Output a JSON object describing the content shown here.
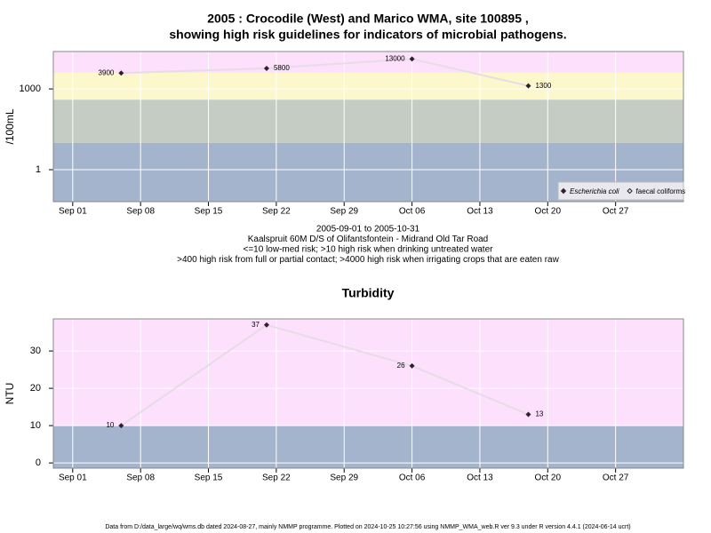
{
  "title": [
    "2005 : Crocodile (West) and Marico WMA, site 100895 ,",
    "showing high risk guidelines for indicators of microbial pathogens."
  ],
  "footer": "Data from D:/data_large/wq/wms.db dated 2024-08-27, mainly NMMP programme. Plotted on 2024-10-25 10:27:56 using NMMP_WMA_web.R ver 9.3 under R version 4.4.1 (2024-06-14 ucrt)",
  "chart_data": [
    {
      "type": "line",
      "ylabel": "/100mL",
      "log_y": true,
      "grid": true,
      "legend": "bottom-right",
      "x": [
        "2005-09-06",
        "2005-09-21",
        "2005-10-06",
        "2005-10-18"
      ],
      "series": [
        {
          "name": "Escherichia coli",
          "color": "#302030",
          "values": [
            3900,
            5800,
            13000,
            1300
          ]
        },
        {
          "name": "faecal coliforms",
          "color": "#302030",
          "values": [
            null,
            null,
            null,
            null
          ]
        }
      ],
      "xlim": [
        "2005-08-30",
        "2005-11-03"
      ],
      "xticks": [
        {
          "value": "2005-09-01",
          "label": "Sep 01"
        },
        {
          "value": "2005-09-08",
          "label": "Sep 08"
        },
        {
          "value": "2005-09-15",
          "label": "Sep 15"
        },
        {
          "value": "2005-09-22",
          "label": "Sep 22"
        },
        {
          "value": "2005-09-29",
          "label": "Sep 29"
        },
        {
          "value": "2005-10-06",
          "label": "Oct 06"
        },
        {
          "value": "2005-10-13",
          "label": "Oct 13"
        },
        {
          "value": "2005-10-20",
          "label": "Oct 20"
        },
        {
          "value": "2005-10-27",
          "label": "Oct 27"
        }
      ],
      "ylim": [
        0.065,
        24500
      ],
      "yticks": [
        1,
        1000
      ],
      "bands": [
        {
          "max": 10,
          "color": "#a4b4cc"
        },
        {
          "min": 10,
          "max": 400,
          "color": "#c4ccc4"
        },
        {
          "min": 400,
          "max": 4000,
          "color": "#fcf8cc"
        },
        {
          "min": 4000,
          "color": "#fce0fc"
        }
      ],
      "notes": [
        "2005-09-01 to 2005-10-31",
        "Kaalspruit 60M D/S of Olifantsfontein - Midrand Old Tar Road",
        "<=10 low-med risk; >10 high risk when drinking untreated water",
        ">400 high risk from full or partial contact; >4000 high risk when irrigating crops that are eaten raw"
      ]
    },
    {
      "type": "line",
      "title": "Turbidity",
      "ylabel": "NTU",
      "log_y": false,
      "grid": true,
      "x": [
        "2005-09-06",
        "2005-09-21",
        "2005-10-06",
        "2005-10-18"
      ],
      "series": [
        {
          "color": "#302030",
          "values": [
            10,
            37,
            26,
            13
          ]
        }
      ],
      "xlim": [
        "2005-08-30",
        "2005-11-03"
      ],
      "xticks": [
        {
          "value": "2005-09-01",
          "label": "Sep 01"
        },
        {
          "value": "2005-09-08",
          "label": "Sep 08"
        },
        {
          "value": "2005-09-15",
          "label": "Sep 15"
        },
        {
          "value": "2005-09-22",
          "label": "Sep 22"
        },
        {
          "value": "2005-09-29",
          "label": "Sep 29"
        },
        {
          "value": "2005-10-06",
          "label": "Oct 06"
        },
        {
          "value": "2005-10-13",
          "label": "Oct 13"
        },
        {
          "value": "2005-10-20",
          "label": "Oct 20"
        },
        {
          "value": "2005-10-27",
          "label": "Oct 27"
        }
      ],
      "ylim": [
        -1.4,
        38.6
      ],
      "yticks": [
        0,
        10,
        20,
        30
      ],
      "bands": [
        {
          "max": 10,
          "color": "#a4b4cc"
        },
        {
          "min": 10,
          "color": "#fce0fc"
        }
      ]
    }
  ]
}
